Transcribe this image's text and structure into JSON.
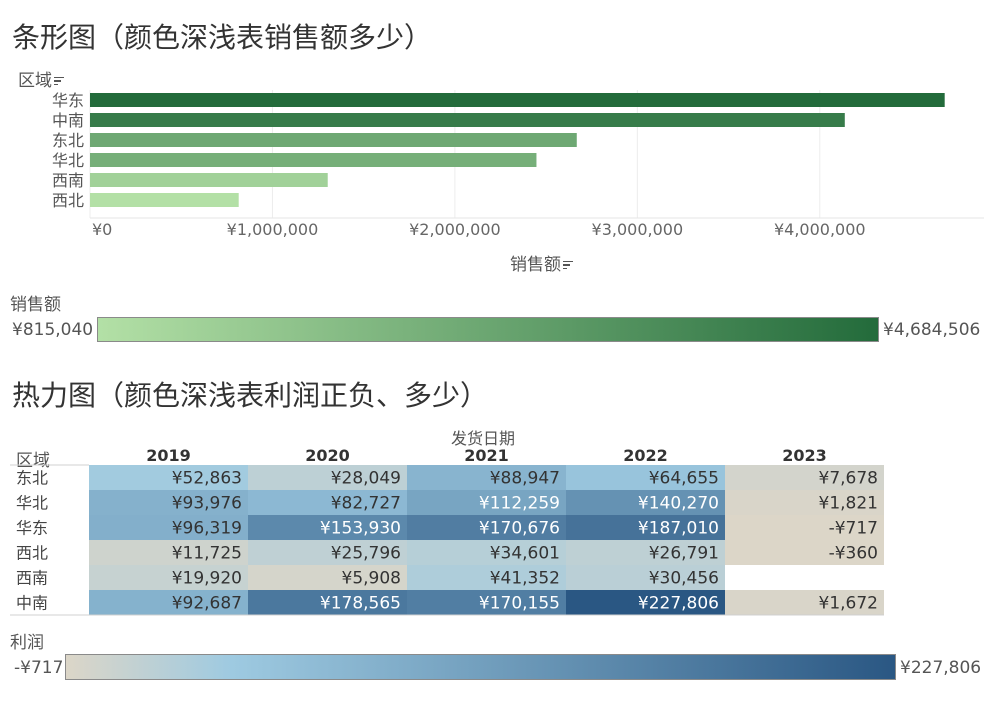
{
  "bar_section": {
    "title": "条形图（颜色深浅表销售额多少）",
    "row_header": "区域",
    "xlabel": "销售额",
    "legend": {
      "title": "销售额",
      "min_label": "¥815,040",
      "max_label": "¥4,684,506",
      "color_min": "#b3e0a6",
      "color_max": "#236b3b"
    }
  },
  "heat_section": {
    "title": "热力图（颜色深浅表利润正负、多少）",
    "column_group_header": "发货日期",
    "row_header": "区域",
    "legend": {
      "title": "利润",
      "min_label": "-¥717",
      "max_label": "¥227,806",
      "color_min": "#dcd6c8",
      "color_mid": "#9ecae1",
      "color_max": "#2a5783"
    }
  },
  "chart_data": [
    {
      "type": "bar",
      "orientation": "horizontal",
      "title": "条形图（颜色深浅表销售额多少）",
      "xlabel": "销售额",
      "ylabel": "区域",
      "categories": [
        "华东",
        "中南",
        "东北",
        "华北",
        "西南",
        "西北"
      ],
      "values": [
        4684506,
        4137000,
        2668000,
        2447000,
        1303000,
        815040
      ],
      "xlim": [
        0,
        4900000
      ],
      "xticks": [
        0,
        1000000,
        2000000,
        3000000,
        4000000
      ],
      "xtick_labels": [
        "¥0",
        "¥1,000,000",
        "¥2,000,000",
        "¥3,000,000",
        "¥4,000,000"
      ],
      "grid": true,
      "color_encoding": "销售额"
    },
    {
      "type": "heatmap",
      "title": "热力图（颜色深浅表利润正负、多少）",
      "column_header": "发货日期",
      "row_header": "区域",
      "columns": [
        "2019",
        "2020",
        "2021",
        "2022",
        "2023"
      ],
      "rows": [
        "东北",
        "华北",
        "华东",
        "西北",
        "西南",
        "中南"
      ],
      "values": [
        [
          52863,
          28049,
          88947,
          64655,
          7678
        ],
        [
          93976,
          82727,
          112259,
          140270,
          1821
        ],
        [
          96319,
          153930,
          170676,
          187010,
          -717
        ],
        [
          11725,
          25796,
          34601,
          26791,
          -360
        ],
        [
          19920,
          5908,
          41352,
          30456,
          null
        ],
        [
          92687,
          178565,
          170155,
          227806,
          1672
        ]
      ],
      "labels": [
        [
          "¥52,863",
          "¥28,049",
          "¥88,947",
          "¥64,655",
          "¥7,678"
        ],
        [
          "¥93,976",
          "¥82,727",
          "¥112,259",
          "¥140,270",
          "¥1,821"
        ],
        [
          "¥96,319",
          "¥153,930",
          "¥170,676",
          "¥187,010",
          "-¥717"
        ],
        [
          "¥11,725",
          "¥25,796",
          "¥34,601",
          "¥26,791",
          "-¥360"
        ],
        [
          "¥19,920",
          "¥5,908",
          "¥41,352",
          "¥30,456",
          ""
        ],
        [
          "¥92,687",
          "¥178,565",
          "¥170,155",
          "¥227,806",
          "¥1,672"
        ]
      ],
      "color_encoding": "利润",
      "value_range": [
        -717,
        227806
      ]
    }
  ]
}
